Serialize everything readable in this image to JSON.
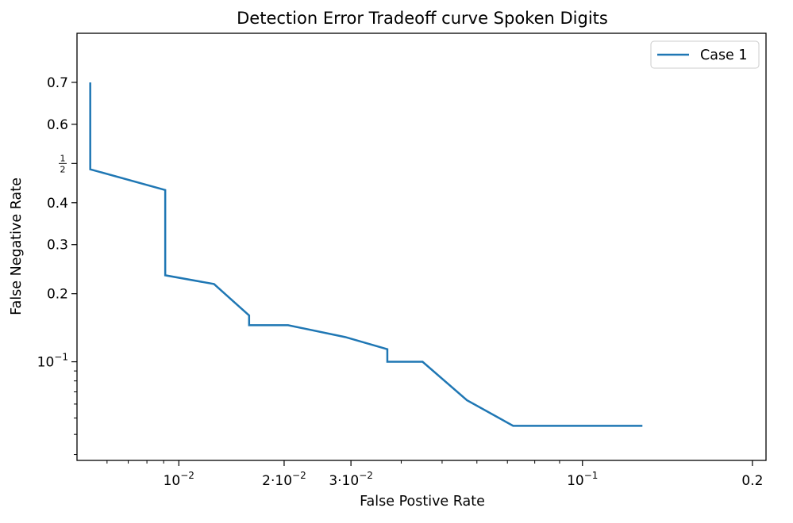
{
  "chart_data": {
    "type": "line",
    "title": "Detection Error Tradeoff curve Spoken Digits",
    "xlabel": "False Postive Rate",
    "ylabel": "False Negative Rate",
    "x_scale": "probit",
    "y_scale": "probit",
    "xlim": [
      0.0048,
      0.21
    ],
    "ylim": [
      0.0275,
      0.8
    ],
    "grid": false,
    "legend_position": "top-right",
    "x_ticks": [
      {
        "value": 0.01,
        "label": "10",
        "exp": "−2"
      },
      {
        "value": 0.02,
        "label": "2·10",
        "exp": "−2"
      },
      {
        "value": 0.03,
        "label": "3·10",
        "exp": "−2"
      },
      {
        "value": 0.1,
        "label": "10",
        "exp": "−1"
      },
      {
        "value": 0.2,
        "label": "0.2",
        "exp": ""
      }
    ],
    "x_minor_ticks": [
      0.006,
      0.007,
      0.008,
      0.009,
      0.04,
      0.05,
      0.06,
      0.07,
      0.08,
      0.09
    ],
    "y_ticks": [
      {
        "value": 0.7,
        "label": "0.7"
      },
      {
        "value": 0.6,
        "label": "0.6"
      },
      {
        "value": 0.5,
        "label": "1/2",
        "fraction": true
      },
      {
        "value": 0.4,
        "label": "0.4"
      },
      {
        "value": 0.3,
        "label": "0.3"
      },
      {
        "value": 0.2,
        "label": "0.2"
      },
      {
        "value": 0.1,
        "label": "10",
        "exp": "−1"
      }
    ],
    "y_minor_ticks": [
      0.03,
      0.04,
      0.05,
      0.06,
      0.07,
      0.08,
      0.09
    ],
    "series": [
      {
        "name": "Case 1",
        "color": "#1f77b4",
        "x": [
          0.0053,
          0.0053,
          0.0091,
          0.0091,
          0.0127,
          0.016,
          0.016,
          0.0205,
          0.029,
          0.037,
          0.037,
          0.045,
          0.057,
          0.072,
          0.13
        ],
        "y": [
          0.7,
          0.485,
          0.432,
          0.235,
          0.218,
          0.163,
          0.148,
          0.148,
          0.131,
          0.115,
          0.1,
          0.1,
          0.063,
          0.045,
          0.045
        ]
      }
    ]
  }
}
